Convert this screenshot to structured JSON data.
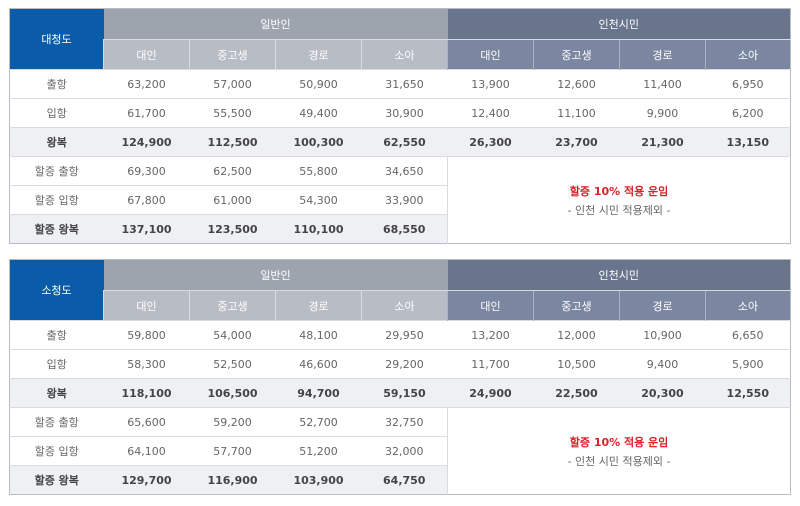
{
  "groups": {
    "general": "일반인",
    "incheon": "인천시민"
  },
  "columns": [
    "대인",
    "중고생",
    "경로",
    "소아"
  ],
  "islands": [
    {
      "name": "대청도",
      "rows": [
        {
          "label": "출항",
          "general": [
            "63,200",
            "57,000",
            "50,900",
            "31,650"
          ],
          "incheon": [
            "13,900",
            "12,600",
            "11,400",
            "6,950"
          ]
        },
        {
          "label": "입항",
          "general": [
            "61,700",
            "55,500",
            "49,400",
            "30,900"
          ],
          "incheon": [
            "12,400",
            "11,100",
            "9,900",
            "6,200"
          ]
        },
        {
          "label": "왕복",
          "general": [
            "124,900",
            "112,500",
            "100,300",
            "62,550"
          ],
          "incheon": [
            "26,300",
            "23,700",
            "21,300",
            "13,150"
          ]
        },
        {
          "label": "할증 출항",
          "general": [
            "69,300",
            "62,500",
            "55,800",
            "34,650"
          ]
        },
        {
          "label": "할증 입항",
          "general": [
            "67,800",
            "61,000",
            "54,300",
            "33,900"
          ]
        },
        {
          "label": "할증 왕복",
          "general": [
            "137,100",
            "123,500",
            "110,100",
            "68,550"
          ]
        }
      ]
    },
    {
      "name": "소청도",
      "rows": [
        {
          "label": "출항",
          "general": [
            "59,800",
            "54,000",
            "48,100",
            "29,950"
          ],
          "incheon": [
            "13,200",
            "12,000",
            "10,900",
            "6,650"
          ]
        },
        {
          "label": "입항",
          "general": [
            "58,300",
            "52,500",
            "46,600",
            "29,200"
          ],
          "incheon": [
            "11,700",
            "10,500",
            "9,400",
            "5,900"
          ]
        },
        {
          "label": "왕복",
          "general": [
            "118,100",
            "106,500",
            "94,700",
            "59,150"
          ],
          "incheon": [
            "24,900",
            "22,500",
            "20,300",
            "12,550"
          ]
        },
        {
          "label": "할증 출항",
          "general": [
            "65,600",
            "59,200",
            "52,700",
            "32,750"
          ]
        },
        {
          "label": "할증 입항",
          "general": [
            "64,100",
            "57,700",
            "51,200",
            "32,000"
          ]
        },
        {
          "label": "할증 왕복",
          "general": [
            "129,700",
            "116,900",
            "103,900",
            "64,750"
          ]
        }
      ]
    }
  ],
  "note": {
    "surcharge": "할증 10% 적용 운임",
    "exclusion": "- 인천 시민 적용제외 -"
  }
}
